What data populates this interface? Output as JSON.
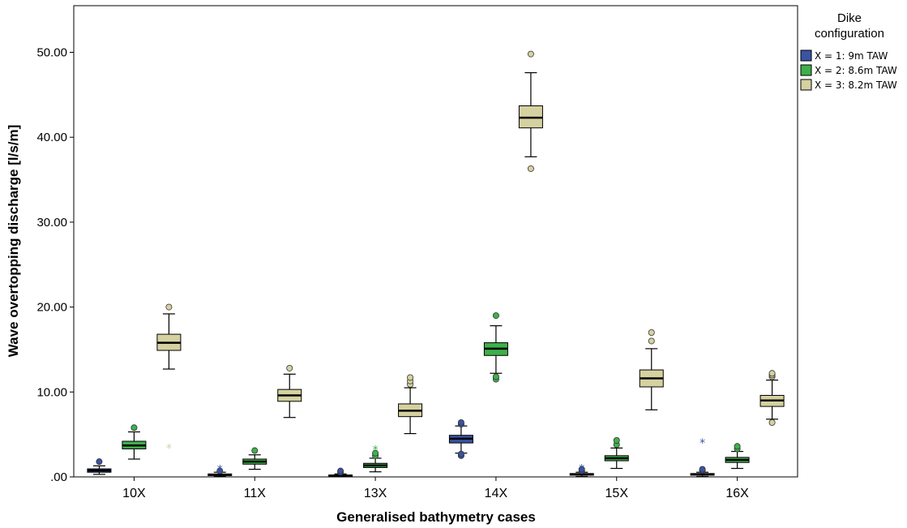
{
  "chart_data": {
    "type": "boxplot",
    "xlabel": "Generalised bathymetry cases",
    "ylabel": "Wave overtopping discharge [l/s/m]",
    "ylim": [
      0,
      55
    ],
    "yticks": [
      0,
      10,
      20,
      30,
      40,
      50
    ],
    "ytick_labels": [
      ".00",
      "10.00",
      "20.00",
      "30.00",
      "40.00",
      "50.00"
    ],
    "grid": false,
    "legend": {
      "title_lines": [
        "Dike",
        "configuration"
      ],
      "placement": "right",
      "entries": [
        {
          "label": "X = 1: 9m TAW",
          "color": "#3a53a4"
        },
        {
          "label": "X = 2: 8.6m TAW",
          "color": "#3eb04a"
        },
        {
          "label": "X = 3: 8.2m TAW",
          "color": "#d5d1a0"
        }
      ]
    },
    "categories": [
      "10X",
      "11X",
      "13X",
      "14X",
      "15X",
      "16X"
    ],
    "series": [
      {
        "name": "X = 1: 9m TAW",
        "color": "#3a53a4",
        "boxes": [
          {
            "whisker_low": 0.3,
            "q1": 0.55,
            "median": 0.75,
            "q3": 0.95,
            "whisker_high": 1.3,
            "outliers": [
              1.8
            ],
            "extremes": []
          },
          {
            "whisker_low": 0.05,
            "q1": 0.15,
            "median": 0.25,
            "q3": 0.35,
            "whisker_high": 0.55,
            "outliers": [
              0.7
            ],
            "extremes": [
              1.0
            ]
          },
          {
            "whisker_low": 0.02,
            "q1": 0.08,
            "median": 0.15,
            "q3": 0.22,
            "whisker_high": 0.35,
            "outliers": [
              0.55,
              0.7
            ],
            "extremes": []
          },
          {
            "whisker_low": 2.8,
            "q1": 4.0,
            "median": 4.5,
            "q3": 4.9,
            "whisker_high": 6.0,
            "outliers": [
              2.5,
              2.7,
              6.2,
              6.4
            ],
            "extremes": []
          },
          {
            "whisker_low": 0.05,
            "q1": 0.2,
            "median": 0.3,
            "q3": 0.4,
            "whisker_high": 0.55,
            "outliers": [
              0.7,
              0.9
            ],
            "extremes": [
              1.1
            ]
          },
          {
            "whisker_low": 0.05,
            "q1": 0.2,
            "median": 0.3,
            "q3": 0.4,
            "whisker_high": 0.55,
            "outliers": [
              0.75,
              0.9
            ],
            "extremes": [
              4.1
            ]
          }
        ]
      },
      {
        "name": "X = 2: 8.6m TAW",
        "color": "#3eb04a",
        "boxes": [
          {
            "whisker_low": 2.1,
            "q1": 3.3,
            "median": 3.7,
            "q3": 4.2,
            "whisker_high": 5.3,
            "outliers": [
              5.8
            ],
            "extremes": []
          },
          {
            "whisker_low": 0.9,
            "q1": 1.5,
            "median": 1.8,
            "q3": 2.1,
            "whisker_high": 2.6,
            "outliers": [
              3.1
            ],
            "extremes": []
          },
          {
            "whisker_low": 0.6,
            "q1": 1.1,
            "median": 1.35,
            "q3": 1.6,
            "whisker_high": 2.2,
            "outliers": [
              2.5,
              2.8
            ],
            "extremes": [
              3.3
            ]
          },
          {
            "whisker_low": 12.2,
            "q1": 14.3,
            "median": 15.1,
            "q3": 15.8,
            "whisker_high": 17.8,
            "outliers": [
              11.5,
              11.8,
              19.0
            ],
            "extremes": []
          },
          {
            "whisker_low": 1.0,
            "q1": 1.9,
            "median": 2.2,
            "q3": 2.5,
            "whisker_high": 3.4,
            "outliers": [
              3.8,
              4.3
            ],
            "extremes": []
          },
          {
            "whisker_low": 1.0,
            "q1": 1.7,
            "median": 2.0,
            "q3": 2.3,
            "whisker_high": 3.0,
            "outliers": [
              3.3,
              3.6
            ],
            "extremes": []
          }
        ]
      },
      {
        "name": "X = 3: 8.2m TAW",
        "color": "#d5d1a0",
        "boxes": [
          {
            "whisker_low": 12.7,
            "q1": 14.9,
            "median": 15.8,
            "q3": 16.8,
            "whisker_high": 19.2,
            "outliers": [
              20.0
            ],
            "extremes": [
              3.5
            ]
          },
          {
            "whisker_low": 7.0,
            "q1": 8.9,
            "median": 9.6,
            "q3": 10.3,
            "whisker_high": 12.1,
            "outliers": [
              12.8
            ],
            "extremes": []
          },
          {
            "whisker_low": 5.1,
            "q1": 7.1,
            "median": 7.8,
            "q3": 8.6,
            "whisker_high": 10.5,
            "outliers": [
              10.9,
              11.3,
              11.7
            ],
            "extremes": []
          },
          {
            "whisker_low": 37.7,
            "q1": 41.1,
            "median": 42.3,
            "q3": 43.7,
            "whisker_high": 47.6,
            "outliers": [
              36.3,
              49.8
            ],
            "extremes": []
          },
          {
            "whisker_low": 7.9,
            "q1": 10.6,
            "median": 11.6,
            "q3": 12.6,
            "whisker_high": 15.1,
            "outliers": [
              16.0,
              17.0
            ],
            "extremes": []
          },
          {
            "whisker_low": 6.8,
            "q1": 8.3,
            "median": 9.0,
            "q3": 9.6,
            "whisker_high": 11.4,
            "outliers": [
              6.4,
              11.8,
              12.0,
              12.2
            ],
            "extremes": []
          }
        ]
      }
    ]
  }
}
